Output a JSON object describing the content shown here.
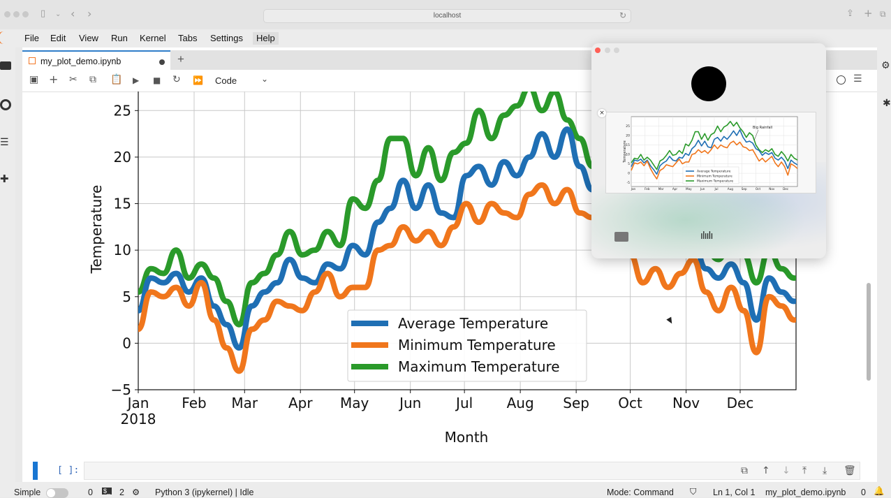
{
  "browser": {
    "url": "localhost"
  },
  "menubar": {
    "items": [
      "File",
      "Edit",
      "View",
      "Run",
      "Kernel",
      "Tabs",
      "Settings",
      "Help"
    ]
  },
  "tab": {
    "label": "my_plot_demo.ipynb",
    "unsaved": true
  },
  "toolbar": {
    "cell_type": "Code"
  },
  "chart_data": {
    "type": "line",
    "xlabel": "Month",
    "ylabel": "Temperature",
    "ylim": [
      -5,
      27.5
    ],
    "yticks": [
      "−5",
      "0",
      "5",
      "10",
      "15",
      "20",
      "25"
    ],
    "xticks": [
      "Jan\n2018",
      "Feb",
      "Mar",
      "Apr",
      "May",
      "Jun",
      "Jul",
      "Aug",
      "Sep",
      "Oct",
      "Nov",
      "Dec"
    ],
    "grid": true,
    "legend_position": "bottom-center",
    "x": [
      "2018-01-01",
      "2018-01-08",
      "2018-01-15",
      "2018-01-22",
      "2018-01-29",
      "2018-02-05",
      "2018-02-12",
      "2018-02-19",
      "2018-02-26",
      "2018-03-05",
      "2018-03-12",
      "2018-03-19",
      "2018-03-26",
      "2018-04-02",
      "2018-04-09",
      "2018-04-16",
      "2018-04-23",
      "2018-04-30",
      "2018-05-07",
      "2018-05-14",
      "2018-05-21",
      "2018-05-28",
      "2018-06-04",
      "2018-06-11",
      "2018-06-18",
      "2018-06-25",
      "2018-07-02",
      "2018-07-09",
      "2018-07-16",
      "2018-07-23",
      "2018-07-30",
      "2018-08-06",
      "2018-08-13",
      "2018-08-20",
      "2018-08-27",
      "2018-09-03",
      "2018-09-10",
      "2018-09-17",
      "2018-09-24",
      "2018-10-01",
      "2018-10-08",
      "2018-10-15",
      "2018-10-22",
      "2018-10-29",
      "2018-11-05",
      "2018-11-12",
      "2018-11-19",
      "2018-11-26",
      "2018-12-03",
      "2018-12-10",
      "2018-12-17",
      "2018-12-24",
      "2018-12-31"
    ],
    "series": [
      {
        "name": "Average Temperature",
        "color": "#1f6fb4",
        "values": [
          3.5,
          7.0,
          6.5,
          7.5,
          5.5,
          7.0,
          4.0,
          2.0,
          -0.5,
          4.0,
          5.5,
          6.5,
          9.0,
          7.0,
          6.5,
          8.5,
          8.0,
          10.5,
          9.5,
          13.0,
          14.5,
          17.5,
          14.5,
          17.0,
          14.0,
          13.5,
          18.0,
          19.0,
          17.0,
          19.5,
          18.0,
          20.0,
          22.5,
          20.0,
          23.0,
          19.0,
          16.5,
          17.0,
          16.0,
          13.0,
          12.0,
          9.5,
          11.0,
          10.0,
          11.0,
          8.0,
          7.0,
          8.5,
          6.5,
          2.5,
          7.0,
          5.5,
          4.5
        ]
      },
      {
        "name": "Minimum Temperature",
        "color": "#f0761c",
        "values": [
          1.5,
          5.5,
          5.0,
          6.0,
          4.0,
          6.5,
          2.5,
          -0.5,
          -3.0,
          1.5,
          2.5,
          4.5,
          4.0,
          3.5,
          5.5,
          7.5,
          5.0,
          6.0,
          6.0,
          10.0,
          10.5,
          12.5,
          11.0,
          12.0,
          10.5,
          12.5,
          15.0,
          13.0,
          15.0,
          14.0,
          13.5,
          16.0,
          17.0,
          15.0,
          16.5,
          14.0,
          13.5,
          12.0,
          12.5,
          9.5,
          6.5,
          8.0,
          6.0,
          7.5,
          9.0,
          5.5,
          3.5,
          6.0,
          3.5,
          -1.0,
          5.0,
          4.0,
          2.5
        ]
      },
      {
        "name": "Maximum Temperature",
        "color": "#2a9a2a",
        "values": [
          5.5,
          8.0,
          7.5,
          10.0,
          7.0,
          8.5,
          7.0,
          4.5,
          2.0,
          6.5,
          7.5,
          9.5,
          12.0,
          9.5,
          10.0,
          12.0,
          10.5,
          15.5,
          14.5,
          17.5,
          22.0,
          22.0,
          18.0,
          21.0,
          17.5,
          20.5,
          21.5,
          25.0,
          22.0,
          24.5,
          25.5,
          27.5,
          25.0,
          27.0,
          24.0,
          22.0,
          19.0,
          21.5,
          20.0,
          15.0,
          12.5,
          11.0,
          12.5,
          11.5,
          13.0,
          10.0,
          9.0,
          11.5,
          9.5,
          6.5,
          10.0,
          8.0,
          7.0
        ]
      }
    ]
  },
  "cell": {
    "prompt": "[ ]:"
  },
  "statusbar": {
    "mode_label": "Simple",
    "terminals": "0",
    "kernels": "2",
    "kernel": "Python 3 (ipykernel) | Idle",
    "mode": "Mode: Command",
    "position": "Ln 1, Col 1",
    "file": "my_plot_demo.ipynb",
    "notifications": "0"
  },
  "popup": {
    "thumbnail": {
      "annotation": "Big Rainfall",
      "ylabel": "Temperature",
      "yticks": [
        "25",
        "20",
        "15",
        "10",
        "5",
        "0",
        "-5"
      ],
      "xticks": [
        "Jan",
        "Feb",
        "Mar",
        "Apr",
        "May",
        "Jun",
        "Jul",
        "Aug",
        "Sep",
        "Oct",
        "Nov",
        "Dec"
      ],
      "legend": [
        "Average Temperature",
        "Minimum Temperature",
        "Maximum Temperature"
      ]
    }
  },
  "colors": {
    "accent": "#2f7ec9",
    "jupyter_orange": "#f37726"
  }
}
